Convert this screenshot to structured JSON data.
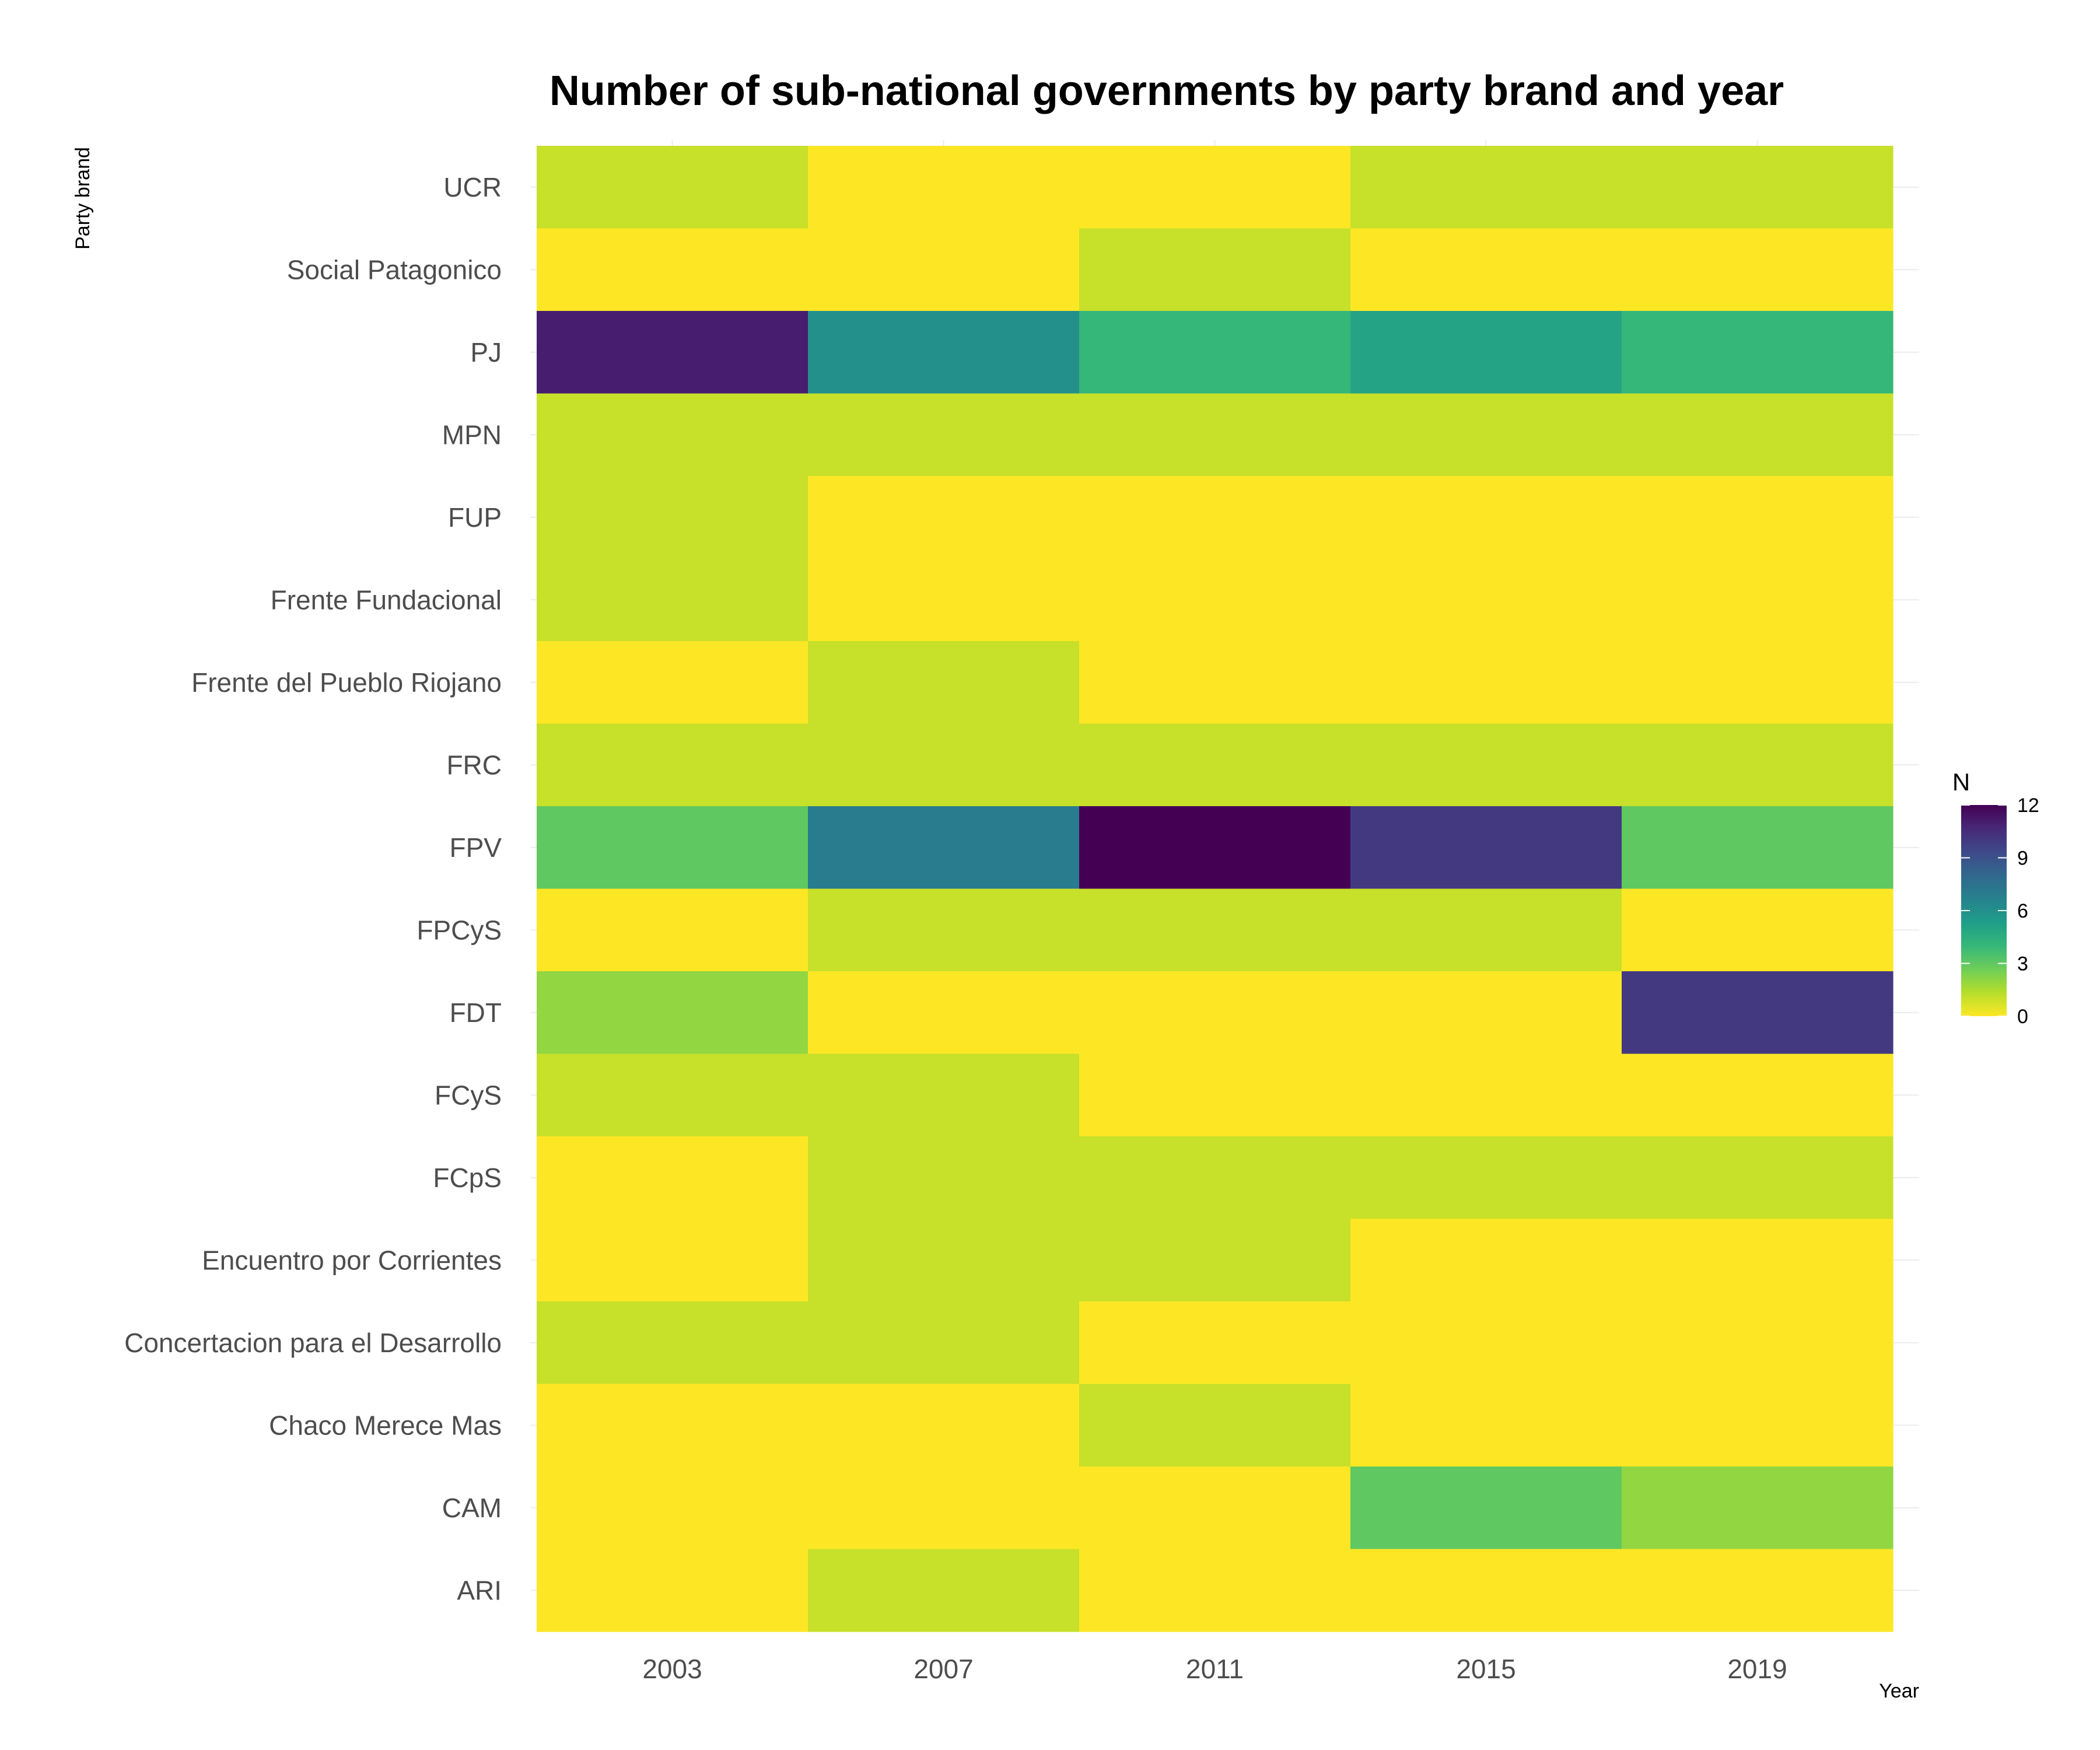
{
  "chart_data": {
    "type": "heatmap",
    "title": "Number of sub-national governments by party brand and year",
    "xlabel": "Year",
    "ylabel": "Party brand",
    "x": [
      "2003",
      "2007",
      "2011",
      "2015",
      "2019"
    ],
    "y": [
      "UCR",
      "Social Patagonico",
      "PJ",
      "MPN",
      "FUP",
      "Frente Fundacional",
      "Frente del Pueblo Riojano",
      "FRC",
      "FPV",
      "FPCyS",
      "FDT",
      "FCyS",
      "FCpS",
      "Encuentro por Corrientes",
      "Concertacion para el Desarrollo",
      "Chaco Merece Mas",
      "CAM",
      "ARI"
    ],
    "values": [
      [
        1,
        0,
        0,
        1,
        1
      ],
      [
        0,
        0,
        1,
        0,
        0
      ],
      [
        11,
        6,
        4,
        5,
        4
      ],
      [
        1,
        1,
        1,
        1,
        1
      ],
      [
        1,
        0,
        0,
        0,
        0
      ],
      [
        1,
        0,
        0,
        0,
        0
      ],
      [
        0,
        1,
        0,
        0,
        0
      ],
      [
        1,
        1,
        1,
        1,
        1
      ],
      [
        3,
        7,
        12,
        10,
        3
      ],
      [
        0,
        1,
        1,
        1,
        0
      ],
      [
        2,
        0,
        0,
        0,
        10
      ],
      [
        1,
        1,
        0,
        0,
        0
      ],
      [
        0,
        1,
        1,
        1,
        1
      ],
      [
        0,
        1,
        1,
        0,
        0
      ],
      [
        1,
        1,
        0,
        0,
        0
      ],
      [
        0,
        0,
        1,
        0,
        0
      ],
      [
        0,
        0,
        0,
        3,
        2
      ],
      [
        0,
        1,
        0,
        0,
        0
      ]
    ],
    "legend": {
      "title": "N",
      "min": 0,
      "max": 12,
      "ticks": [
        "12",
        "9",
        "6",
        "3",
        "0"
      ],
      "placement": "right"
    },
    "colorscale": "viridis (reversed)",
    "colorscale_stops": [
      "#fde725",
      "#b5de2b",
      "#6ece58",
      "#35b779",
      "#1f9e89",
      "#26828e",
      "#31688e",
      "#3e4989",
      "#482878",
      "#440154"
    ],
    "grid": true
  }
}
